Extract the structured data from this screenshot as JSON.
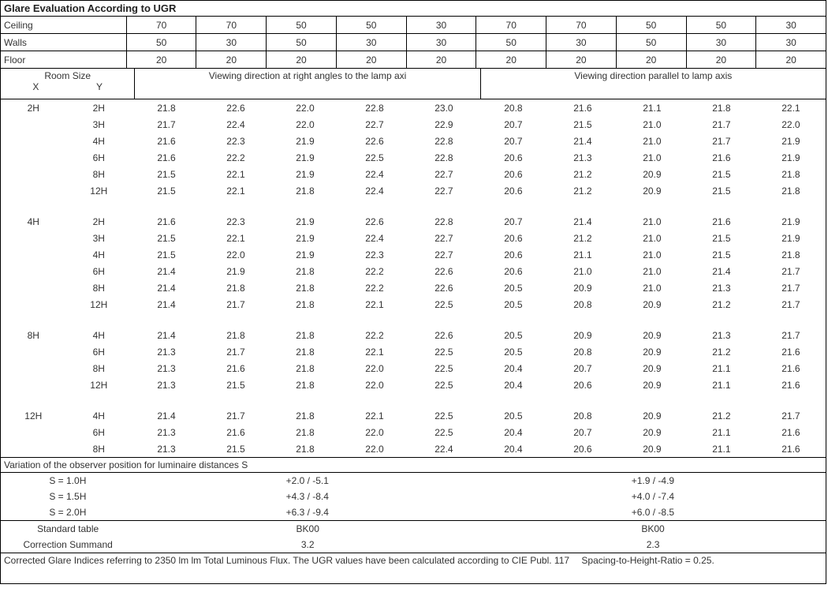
{
  "title": "Glare Evaluation According to UGR",
  "reflectances": {
    "rows": [
      {
        "label": "Ceiling",
        "vals": [
          "70",
          "70",
          "50",
          "50",
          "30",
          "70",
          "70",
          "50",
          "50",
          "30"
        ]
      },
      {
        "label": "Walls",
        "vals": [
          "50",
          "30",
          "50",
          "30",
          "30",
          "50",
          "30",
          "50",
          "30",
          "30"
        ]
      },
      {
        "label": "Floor",
        "vals": [
          "20",
          "20",
          "20",
          "20",
          "20",
          "20",
          "20",
          "20",
          "20",
          "20"
        ]
      }
    ]
  },
  "column_groups": {
    "room_size": "Room Size",
    "x_label": "X",
    "y_label": "Y",
    "left": "Viewing direction at right angles to the lamp axi",
    "right": "Viewing direction parallel to lamp axis"
  },
  "groups": [
    {
      "x": "2H",
      "rows": [
        {
          "y": "2H",
          "v": [
            "21.8",
            "22.6",
            "22.0",
            "22.8",
            "23.0",
            "20.8",
            "21.6",
            "21.1",
            "21.8",
            "22.1"
          ]
        },
        {
          "y": "3H",
          "v": [
            "21.7",
            "22.4",
            "22.0",
            "22.7",
            "22.9",
            "20.7",
            "21.5",
            "21.0",
            "21.7",
            "22.0"
          ]
        },
        {
          "y": "4H",
          "v": [
            "21.6",
            "22.3",
            "21.9",
            "22.6",
            "22.8",
            "20.7",
            "21.4",
            "21.0",
            "21.7",
            "21.9"
          ]
        },
        {
          "y": "6H",
          "v": [
            "21.6",
            "22.2",
            "21.9",
            "22.5",
            "22.8",
            "20.6",
            "21.3",
            "21.0",
            "21.6",
            "21.9"
          ]
        },
        {
          "y": "8H",
          "v": [
            "21.5",
            "22.1",
            "21.9",
            "22.4",
            "22.7",
            "20.6",
            "21.2",
            "20.9",
            "21.5",
            "21.8"
          ]
        },
        {
          "y": "12H",
          "v": [
            "21.5",
            "22.1",
            "21.8",
            "22.4",
            "22.7",
            "20.6",
            "21.2",
            "20.9",
            "21.5",
            "21.8"
          ]
        }
      ]
    },
    {
      "x": "4H",
      "rows": [
        {
          "y": "2H",
          "v": [
            "21.6",
            "22.3",
            "21.9",
            "22.6",
            "22.8",
            "20.7",
            "21.4",
            "21.0",
            "21.6",
            "21.9"
          ]
        },
        {
          "y": "3H",
          "v": [
            "21.5",
            "22.1",
            "21.9",
            "22.4",
            "22.7",
            "20.6",
            "21.2",
            "21.0",
            "21.5",
            "21.9"
          ]
        },
        {
          "y": "4H",
          "v": [
            "21.5",
            "22.0",
            "21.9",
            "22.3",
            "22.7",
            "20.6",
            "21.1",
            "21.0",
            "21.5",
            "21.8"
          ]
        },
        {
          "y": "6H",
          "v": [
            "21.4",
            "21.9",
            "21.8",
            "22.2",
            "22.6",
            "20.6",
            "21.0",
            "21.0",
            "21.4",
            "21.7"
          ]
        },
        {
          "y": "8H",
          "v": [
            "21.4",
            "21.8",
            "21.8",
            "22.2",
            "22.6",
            "20.5",
            "20.9",
            "21.0",
            "21.3",
            "21.7"
          ]
        },
        {
          "y": "12H",
          "v": [
            "21.4",
            "21.7",
            "21.8",
            "22.1",
            "22.5",
            "20.5",
            "20.8",
            "20.9",
            "21.2",
            "21.7"
          ]
        }
      ]
    },
    {
      "x": "8H",
      "rows": [
        {
          "y": "4H",
          "v": [
            "21.4",
            "21.8",
            "21.8",
            "22.2",
            "22.6",
            "20.5",
            "20.9",
            "20.9",
            "21.3",
            "21.7"
          ]
        },
        {
          "y": "6H",
          "v": [
            "21.3",
            "21.7",
            "21.8",
            "22.1",
            "22.5",
            "20.5",
            "20.8",
            "20.9",
            "21.2",
            "21.6"
          ]
        },
        {
          "y": "8H",
          "v": [
            "21.3",
            "21.6",
            "21.8",
            "22.0",
            "22.5",
            "20.4",
            "20.7",
            "20.9",
            "21.1",
            "21.6"
          ]
        },
        {
          "y": "12H",
          "v": [
            "21.3",
            "21.5",
            "21.8",
            "22.0",
            "22.5",
            "20.4",
            "20.6",
            "20.9",
            "21.1",
            "21.6"
          ]
        }
      ]
    },
    {
      "x": "12H",
      "rows": [
        {
          "y": "4H",
          "v": [
            "21.4",
            "21.7",
            "21.8",
            "22.1",
            "22.5",
            "20.5",
            "20.8",
            "20.9",
            "21.2",
            "21.7"
          ]
        },
        {
          "y": "6H",
          "v": [
            "21.3",
            "21.6",
            "21.8",
            "22.0",
            "22.5",
            "20.4",
            "20.7",
            "20.9",
            "21.1",
            "21.6"
          ]
        },
        {
          "y": "8H",
          "v": [
            "21.3",
            "21.5",
            "21.8",
            "22.0",
            "22.4",
            "20.4",
            "20.6",
            "20.9",
            "21.1",
            "21.6"
          ]
        }
      ]
    }
  ],
  "variation": {
    "header": "Variation of the observer position for luminaire distances S",
    "rows": [
      {
        "s": "S = 1.0H",
        "left": "+2.0 / -5.1",
        "right": "+1.9 / -4.9"
      },
      {
        "s": "S = 1.5H",
        "left": "+4.3 / -8.4",
        "right": "+4.0 / -7.4"
      },
      {
        "s": "S = 2.0H",
        "left": "+6.3 / -9.4",
        "right": "+6.0 / -8.5"
      }
    ]
  },
  "standard": {
    "table_label": "Standard table",
    "corr_label": "Correction Summand",
    "left_table": "BK00",
    "right_table": "BK00",
    "left_corr": "3.2",
    "right_corr": "2.3"
  },
  "footer": {
    "line1": "Corrected Glare Indices referring to 2350 lm lm Total Luminous Flux. The UGR values have been calculated according to CIE Publ. 117",
    "spacing": "Spacing-to-Height-Ratio = 0.25."
  }
}
